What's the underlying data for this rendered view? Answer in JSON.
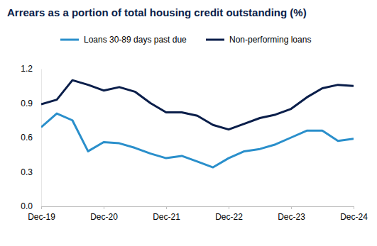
{
  "chart_data": {
    "type": "line",
    "title": "Arrears as a portion of total housing credit outstanding (%)",
    "categories": [
      "Dec-19",
      null,
      null,
      null,
      "Dec-20",
      null,
      null,
      null,
      "Dec-21",
      null,
      null,
      null,
      "Dec-22",
      null,
      null,
      null,
      "Dec-23",
      null,
      null,
      null,
      "Dec-24"
    ],
    "series": [
      {
        "name": "Loans 30-89 days past due",
        "color": "#2A8FCB",
        "values": [
          0.69,
          0.81,
          0.75,
          0.48,
          0.56,
          0.55,
          0.51,
          0.46,
          0.42,
          0.44,
          0.39,
          0.34,
          0.42,
          0.48,
          0.5,
          0.54,
          0.6,
          0.66,
          0.66,
          0.57,
          0.59
        ]
      },
      {
        "name": "Non-performing loans",
        "color": "#0A1E4A",
        "values": [
          0.89,
          0.93,
          1.1,
          1.06,
          1.01,
          1.04,
          1.0,
          0.9,
          0.82,
          0.82,
          0.79,
          0.71,
          0.67,
          0.72,
          0.77,
          0.8,
          0.85,
          0.95,
          1.03,
          1.06,
          1.05
        ]
      }
    ],
    "ylim": [
      0,
      1.2
    ],
    "yticks": [
      {
        "value": 0,
        "label": "0.0"
      },
      0.3,
      0.6,
      0.9,
      1.2
    ],
    "grid": false,
    "legend": "top"
  }
}
